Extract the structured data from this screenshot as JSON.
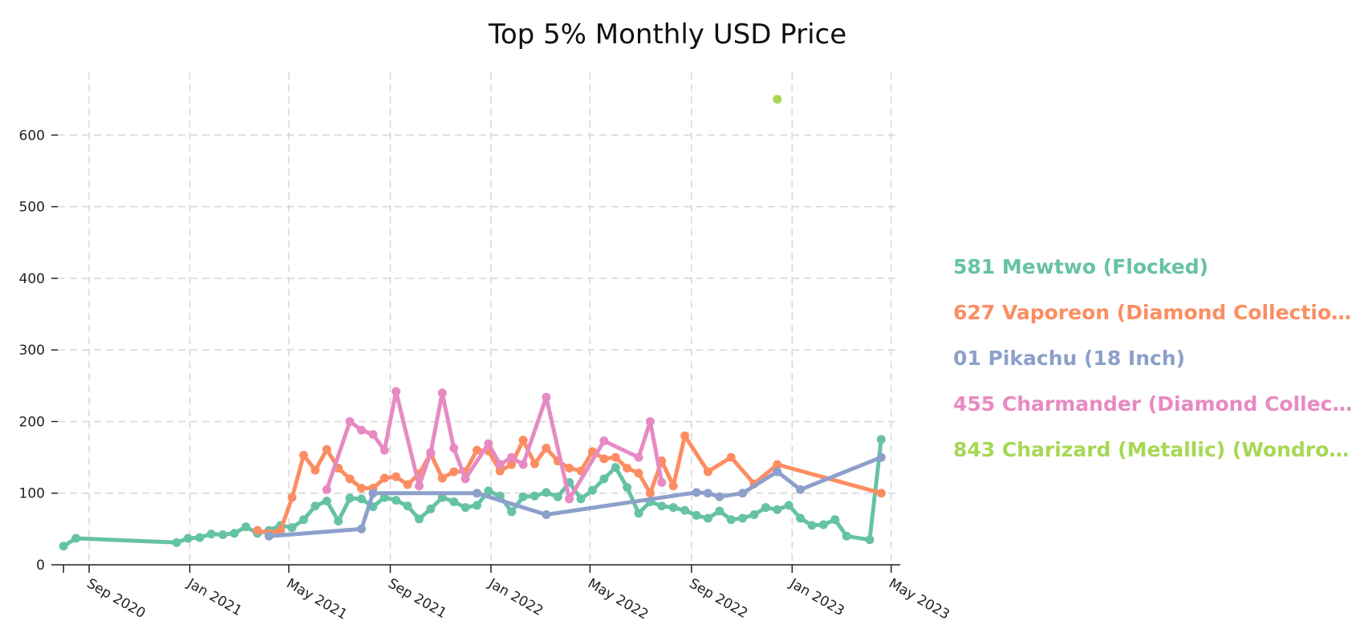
{
  "chart_data": {
    "type": "line",
    "title": "Top 5% Monthly USD Price",
    "xlabel": "",
    "ylabel": "",
    "ylim": [
      0,
      690
    ],
    "xlim": [
      "2020-07-25",
      "2023-05-12"
    ],
    "yticks": [
      0,
      100,
      200,
      300,
      400,
      500,
      600
    ],
    "xticks": [
      {
        "date": "2020-08-01",
        "label": ""
      },
      {
        "date": "2020-09-01",
        "label": "Sep 2020"
      },
      {
        "date": "2021-01-01",
        "label": "Jan 2021"
      },
      {
        "date": "2021-05-01",
        "label": "May 2021"
      },
      {
        "date": "2021-09-01",
        "label": "Sep 2021"
      },
      {
        "date": "2022-01-01",
        "label": "Jan 2022"
      },
      {
        "date": "2022-05-01",
        "label": "May 2022"
      },
      {
        "date": "2022-09-01",
        "label": "Sep 2022"
      },
      {
        "date": "2023-01-01",
        "label": "Jan 2023"
      },
      {
        "date": "2023-05-01",
        "label": "May 2023"
      }
    ],
    "grid": true,
    "legend_position": "right",
    "series": [
      {
        "name": "581 Mewtwo (Flocked)",
        "color": "#66c2a5",
        "points": [
          [
            "2020-08-01",
            26
          ],
          [
            "2020-08-16",
            37
          ],
          [
            "2020-12-16",
            31
          ],
          [
            "2020-12-30",
            37
          ],
          [
            "2021-01-13",
            38
          ],
          [
            "2021-01-27",
            43
          ],
          [
            "2021-02-10",
            42
          ],
          [
            "2021-02-24",
            44
          ],
          [
            "2021-03-10",
            53
          ],
          [
            "2021-03-24",
            44
          ],
          [
            "2021-04-07",
            48
          ],
          [
            "2021-04-21",
            55
          ],
          [
            "2021-05-05",
            52
          ],
          [
            "2021-05-19",
            63
          ],
          [
            "2021-06-02",
            82
          ],
          [
            "2021-06-16",
            89
          ],
          [
            "2021-06-30",
            61
          ],
          [
            "2021-07-14",
            93
          ],
          [
            "2021-07-28",
            92
          ],
          [
            "2021-08-11",
            81
          ],
          [
            "2021-08-25",
            94
          ],
          [
            "2021-09-08",
            90
          ],
          [
            "2021-09-22",
            82
          ],
          [
            "2021-10-06",
            64
          ],
          [
            "2021-10-20",
            78
          ],
          [
            "2021-11-03",
            94
          ],
          [
            "2021-11-17",
            88
          ],
          [
            "2021-12-01",
            80
          ],
          [
            "2021-12-15",
            83
          ],
          [
            "2021-12-29",
            103
          ],
          [
            "2022-01-12",
            96
          ],
          [
            "2022-01-26",
            74
          ],
          [
            "2022-02-09",
            95
          ],
          [
            "2022-02-23",
            96
          ],
          [
            "2022-03-09",
            101
          ],
          [
            "2022-03-23",
            95
          ],
          [
            "2022-04-06",
            115
          ],
          [
            "2022-04-20",
            92
          ],
          [
            "2022-05-04",
            104
          ],
          [
            "2022-05-18",
            120
          ],
          [
            "2022-06-01",
            136
          ],
          [
            "2022-06-15",
            108
          ],
          [
            "2022-06-29",
            72
          ],
          [
            "2022-07-13",
            88
          ],
          [
            "2022-07-27",
            82
          ],
          [
            "2022-08-10",
            80
          ],
          [
            "2022-08-24",
            76
          ],
          [
            "2022-09-07",
            69
          ],
          [
            "2022-09-21",
            65
          ],
          [
            "2022-10-05",
            75
          ],
          [
            "2022-10-19",
            63
          ],
          [
            "2022-11-02",
            65
          ],
          [
            "2022-11-16",
            70
          ],
          [
            "2022-11-30",
            80
          ],
          [
            "2022-12-14",
            77
          ],
          [
            "2022-12-28",
            83
          ],
          [
            "2023-01-11",
            65
          ],
          [
            "2023-01-25",
            55
          ],
          [
            "2023-02-08",
            56
          ],
          [
            "2023-02-22",
            63
          ],
          [
            "2023-03-08",
            40
          ],
          [
            "2023-04-05",
            35
          ],
          [
            "2023-04-19",
            175
          ]
        ]
      },
      {
        "name": "627 Vaporeon (Diamond Collectio…",
        "color": "#fc8d62",
        "points": [
          [
            "2021-03-24",
            48
          ],
          [
            "2021-04-07",
            44
          ],
          [
            "2021-04-21",
            48
          ],
          [
            "2021-05-05",
            94
          ],
          [
            "2021-05-19",
            153
          ],
          [
            "2021-06-02",
            132
          ],
          [
            "2021-06-16",
            161
          ],
          [
            "2021-06-30",
            135
          ],
          [
            "2021-07-14",
            120
          ],
          [
            "2021-07-28",
            107
          ],
          [
            "2021-08-11",
            107
          ],
          [
            "2021-08-25",
            121
          ],
          [
            "2021-09-08",
            123
          ],
          [
            "2021-09-22",
            112
          ],
          [
            "2021-10-06",
            127
          ],
          [
            "2021-10-20",
            155
          ],
          [
            "2021-11-03",
            121
          ],
          [
            "2021-11-17",
            130
          ],
          [
            "2021-12-01",
            130
          ],
          [
            "2021-12-15",
            160
          ],
          [
            "2021-12-29",
            159
          ],
          [
            "2022-01-12",
            131
          ],
          [
            "2022-01-26",
            140
          ],
          [
            "2022-02-09",
            174
          ],
          [
            "2022-02-23",
            141
          ],
          [
            "2022-03-09",
            163
          ],
          [
            "2022-03-23",
            145
          ],
          [
            "2022-04-06",
            135
          ],
          [
            "2022-04-20",
            131
          ],
          [
            "2022-05-04",
            158
          ],
          [
            "2022-05-18",
            148
          ],
          [
            "2022-06-01",
            150
          ],
          [
            "2022-06-15",
            135
          ],
          [
            "2022-06-29",
            128
          ],
          [
            "2022-07-13",
            100
          ],
          [
            "2022-07-27",
            145
          ],
          [
            "2022-08-10",
            110
          ],
          [
            "2022-08-24",
            180
          ],
          [
            "2022-09-21",
            130
          ],
          [
            "2022-10-19",
            150
          ],
          [
            "2022-11-16",
            113
          ],
          [
            "2022-12-14",
            140
          ],
          [
            "2023-04-19",
            100
          ]
        ]
      },
      {
        "name": "01 Pikachu (18 Inch)",
        "color": "#8da0cb",
        "points": [
          [
            "2021-04-07",
            40
          ],
          [
            "2021-07-28",
            50
          ],
          [
            "2021-08-11",
            100
          ],
          [
            "2021-12-15",
            100
          ],
          [
            "2022-03-09",
            70
          ],
          [
            "2022-09-07",
            101
          ],
          [
            "2022-09-21",
            100
          ],
          [
            "2022-10-05",
            95
          ],
          [
            "2022-11-02",
            100
          ],
          [
            "2022-12-14",
            130
          ],
          [
            "2023-01-11",
            105
          ],
          [
            "2023-04-19",
            150
          ]
        ]
      },
      {
        "name": "455 Charmander (Diamond Collec…",
        "color": "#e78ac3",
        "points": [
          [
            "2021-06-16",
            105
          ],
          [
            "2021-07-14",
            200
          ],
          [
            "2021-07-28",
            188
          ],
          [
            "2021-08-11",
            182
          ],
          [
            "2021-08-25",
            160
          ],
          [
            "2021-09-08",
            242
          ],
          [
            "2021-10-06",
            110
          ],
          [
            "2021-10-20",
            157
          ],
          [
            "2021-11-03",
            240
          ],
          [
            "2021-11-17",
            163
          ],
          [
            "2021-12-01",
            120
          ],
          [
            "2021-12-29",
            169
          ],
          [
            "2022-01-12",
            140
          ],
          [
            "2022-01-26",
            150
          ],
          [
            "2022-02-09",
            140
          ],
          [
            "2022-03-09",
            234
          ],
          [
            "2022-04-06",
            92
          ],
          [
            "2022-05-18",
            173
          ],
          [
            "2022-06-29",
            150
          ],
          [
            "2022-07-13",
            200
          ],
          [
            "2022-07-27",
            115
          ]
        ]
      },
      {
        "name": "843 Charizard (Metallic) (Wondro…",
        "color": "#a6d854",
        "points": [
          [
            "2022-12-14",
            650
          ]
        ]
      }
    ]
  }
}
